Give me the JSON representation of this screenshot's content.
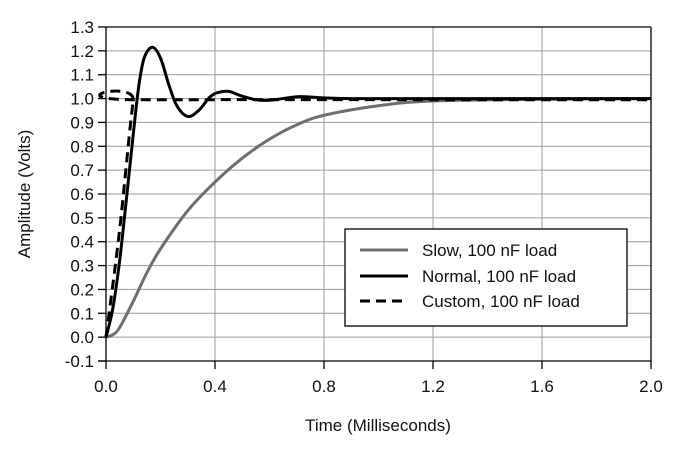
{
  "chart_data": {
    "type": "line",
    "title": "",
    "xlabel": "Time (Milliseconds)",
    "ylabel": "Amplitude (Volts)",
    "xlim": [
      0,
      2.0
    ],
    "ylim": [
      -0.1,
      1.3
    ],
    "xticks": [
      "0.0",
      "0.4",
      "0.8",
      "1.2",
      "1.6",
      "2.0"
    ],
    "xtick_values": [
      0,
      0.4,
      0.8,
      1.2,
      1.6,
      2.0
    ],
    "yticks": [
      "-0.1",
      "0.0",
      "0.1",
      "0.2",
      "0.3",
      "0.4",
      "0.5",
      "0.6",
      "0.7",
      "0.8",
      "0.9",
      "1.0",
      "1.1",
      "1.2",
      "1.3"
    ],
    "ytick_values": [
      -0.1,
      0,
      0.1,
      0.2,
      0.3,
      0.4,
      0.5,
      0.6,
      0.7,
      0.8,
      0.9,
      1.0,
      1.1,
      1.2,
      1.3
    ],
    "grid": true,
    "legend_position": "bottom-right",
    "series": [
      {
        "name": "Slow, 100 nF load",
        "color": "#6e6e6e",
        "dash": "solid",
        "x": [
          0,
          0.025,
          0.05,
          0.1,
          0.15,
          0.2,
          0.3,
          0.4,
          0.5,
          0.6,
          0.7,
          0.8,
          1.0,
          1.2,
          1.6,
          2.0
        ],
        "y": [
          0,
          0.01,
          0.04,
          0.15,
          0.27,
          0.37,
          0.53,
          0.65,
          0.75,
          0.83,
          0.89,
          0.93,
          0.97,
          0.99,
          0.997,
          1.0
        ]
      },
      {
        "name": "Normal, 100 nF load",
        "color": "#000000",
        "dash": "solid",
        "x": [
          0,
          0.025,
          0.05,
          0.075,
          0.1,
          0.12,
          0.14,
          0.17,
          0.2,
          0.23,
          0.26,
          0.3,
          0.34,
          0.38,
          0.41,
          0.45,
          0.5,
          0.55,
          0.6,
          0.65,
          0.71,
          0.78,
          0.85,
          1.0,
          2.0
        ],
        "y": [
          0,
          0.12,
          0.32,
          0.58,
          0.85,
          1.05,
          1.17,
          1.215,
          1.17,
          1.06,
          0.97,
          0.925,
          0.95,
          1.005,
          1.025,
          1.03,
          1.01,
          0.995,
          0.993,
          1.0,
          1.008,
          1.004,
          1.001,
          1.0,
          1.0
        ]
      },
      {
        "name": "Custom, 100 nF load",
        "color": "#000000",
        "dash": "dashed",
        "x": [
          0,
          0.05,
          0.1,
          0.12,
          2.0
        ],
        "y": [
          0,
          0.45,
          0.99,
          0.995,
          0.995
        ]
      }
    ]
  }
}
